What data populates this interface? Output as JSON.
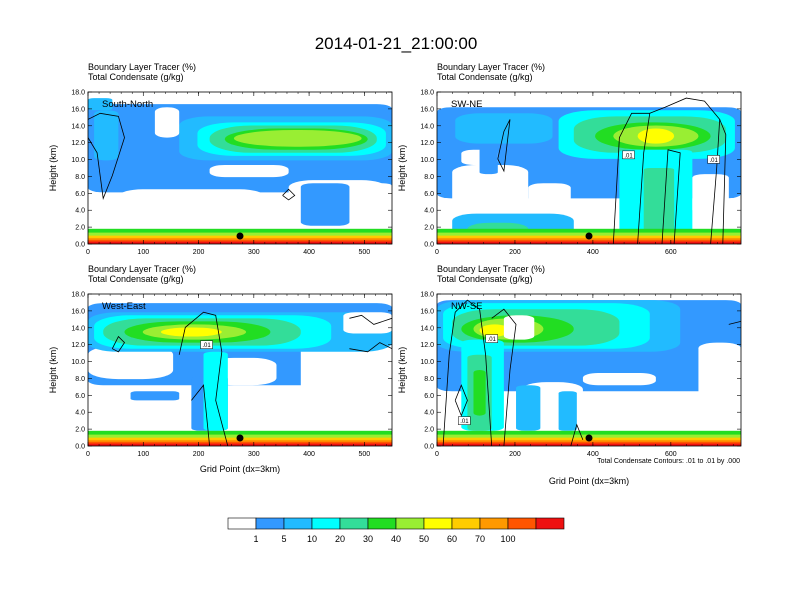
{
  "figure": {
    "title": "2014-01-21_21:00:00",
    "note": "Total Condensate Contours: .01 to .01 by .000"
  },
  "chart_data": {
    "type": "heatmap",
    "title": "2014-01-21_21:00:00",
    "colorbar": {
      "labels": [
        "1",
        "5",
        "10",
        "20",
        "30",
        "40",
        "50",
        "60",
        "70",
        "100"
      ],
      "colors": [
        "#ffffff",
        "#3399ff",
        "#22bbff",
        "#00ffff",
        "#33dd99",
        "#22dd22",
        "#99ee33",
        "#ffff00",
        "#ffcc00",
        "#ff9900",
        "#ff5500",
        "#ee1111"
      ]
    },
    "fill_field": "Boundary Layer Tracer (%)",
    "contour_field": "Total Condensate (g/kg)",
    "panels": [
      {
        "subtitle1": "Boundary Layer Tracer   (%)",
        "subtitle2": "Total Condensate   (g/kg)",
        "label": "South-North",
        "xlabel": "",
        "ylabel": "Height (km)",
        "xlim": [
          0,
          550
        ],
        "ylim": [
          0,
          18
        ],
        "xticks": [
          "0",
          "100",
          "200",
          "300",
          "400",
          "500"
        ],
        "yticks": [
          "0.0",
          "2.0",
          "4.0",
          "6.0",
          "8.0",
          "10.0",
          "12.0",
          "14.0",
          "16.0",
          "18.0"
        ],
        "marker_x": 275,
        "contour_labels": []
      },
      {
        "subtitle1": "Boundary Layer Tracer   (%)",
        "subtitle2": "Total Condensate   (g/kg)",
        "label": "SW-NE",
        "xlabel": "",
        "ylabel": "Height (km)",
        "xlim": [
          0,
          780
        ],
        "ylim": [
          0,
          18
        ],
        "xticks": [
          "0",
          "200",
          "400",
          "600"
        ],
        "yticks": [
          "0.0",
          "2.0",
          "4.0",
          "6.0",
          "8.0",
          "10.0",
          "12.0",
          "14.0",
          "16.0",
          "18.0"
        ],
        "marker_x": 390,
        "contour_labels": [
          ".01",
          ".01"
        ]
      },
      {
        "subtitle1": "Boundary Layer Tracer   (%)",
        "subtitle2": "Total Condensate   (g/kg)",
        "label": "West-East",
        "xlabel": "Grid Point (dx=3km)",
        "ylabel": "Height (km)",
        "xlim": [
          0,
          550
        ],
        "ylim": [
          0,
          18
        ],
        "xticks": [
          "0",
          "100",
          "200",
          "300",
          "400",
          "500"
        ],
        "yticks": [
          "0.0",
          "2.0",
          "4.0",
          "6.0",
          "8.0",
          "10.0",
          "12.0",
          "14.0",
          "16.0",
          "18.0"
        ],
        "marker_x": 275,
        "contour_labels": [
          ".01"
        ]
      },
      {
        "subtitle1": "Boundary Layer Tracer   (%)",
        "subtitle2": "Total Condensate   (g/kg)",
        "label": "NW-SE",
        "xlabel": "Grid Point (dx=3km)",
        "ylabel": "Height (km)",
        "xlim": [
          0,
          780
        ],
        "ylim": [
          0,
          18
        ],
        "xticks": [
          "0",
          "200",
          "400",
          "600"
        ],
        "yticks": [
          "0.0",
          "2.0",
          "4.0",
          "6.0",
          "8.0",
          "10.0",
          "12.0",
          "14.0",
          "16.0",
          "18.0"
        ],
        "marker_x": 390,
        "contour_labels": [
          ".01",
          ".01"
        ]
      }
    ]
  }
}
